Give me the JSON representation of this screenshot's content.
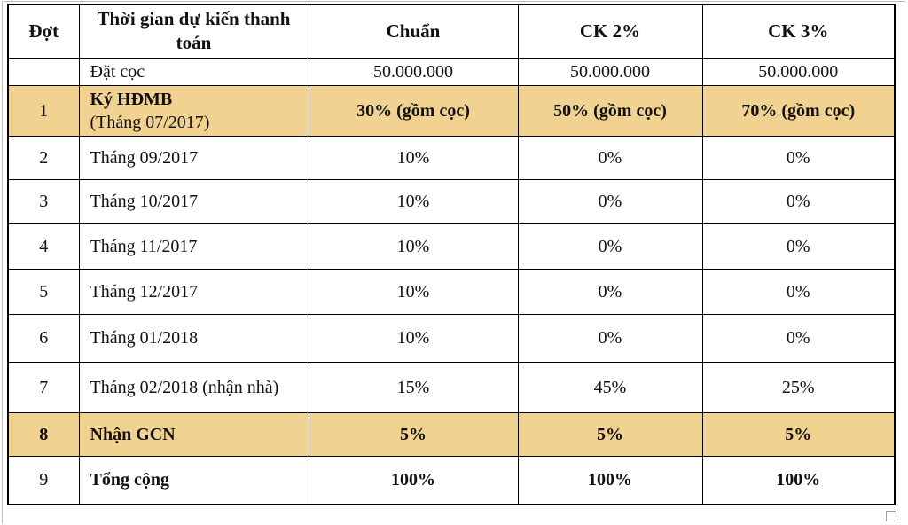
{
  "table": {
    "highlight_color": "#F1D291",
    "border_color": "#000000",
    "columns": [
      {
        "key": "dot",
        "label": "Đợt"
      },
      {
        "key": "time",
        "label": "Thời gian dự kiến thanh toán"
      },
      {
        "key": "chuan",
        "label": "Chuẩn"
      },
      {
        "key": "ck2",
        "label": "CK 2%"
      },
      {
        "key": "ck3",
        "label": "CK 3%"
      }
    ],
    "rows": [
      {
        "dot": "",
        "time": "Đặt cọc",
        "time_line2": "",
        "chuan": "50.000.000",
        "ck2": "50.000.000",
        "ck3": "50.000.000",
        "highlight": false,
        "bold_dot": false,
        "bold_time": false,
        "bold_values": false
      },
      {
        "dot": "1",
        "time": "Ký HĐMB",
        "time_line2": "(Tháng 07/2017)",
        "chuan": "30% (gồm cọc)",
        "ck2": "50% (gồm cọc)",
        "ck3": "70% (gồm cọc)",
        "highlight": true,
        "bold_dot": false,
        "bold_time": true,
        "bold_values": true
      },
      {
        "dot": "2",
        "time": "Tháng 09/2017",
        "time_line2": "",
        "chuan": "10%",
        "ck2": "0%",
        "ck3": "0%",
        "highlight": false,
        "bold_dot": false,
        "bold_time": false,
        "bold_values": false
      },
      {
        "dot": "3",
        "time": "Tháng 10/2017",
        "time_line2": "",
        "chuan": "10%",
        "ck2": "0%",
        "ck3": "0%",
        "highlight": false,
        "bold_dot": false,
        "bold_time": false,
        "bold_values": false
      },
      {
        "dot": "4",
        "time": "Tháng 11/2017",
        "time_line2": "",
        "chuan": "10%",
        "ck2": "0%",
        "ck3": "0%",
        "highlight": false,
        "bold_dot": false,
        "bold_time": false,
        "bold_values": false
      },
      {
        "dot": "5",
        "time": "Tháng 12/2017",
        "time_line2": "",
        "chuan": "10%",
        "ck2": "0%",
        "ck3": "0%",
        "highlight": false,
        "bold_dot": false,
        "bold_time": false,
        "bold_values": false
      },
      {
        "dot": "6",
        "time": "Tháng 01/2018",
        "time_line2": "",
        "chuan": "10%",
        "ck2": "0%",
        "ck3": "0%",
        "highlight": false,
        "bold_dot": false,
        "bold_time": false,
        "bold_values": false
      },
      {
        "dot": "7",
        "time": "Tháng 02/2018 (nhận nhà)",
        "time_line2": "",
        "chuan": "15%",
        "ck2": "45%",
        "ck3": "25%",
        "highlight": false,
        "bold_dot": false,
        "bold_time": false,
        "bold_values": false
      },
      {
        "dot": "8",
        "time": "Nhận GCN",
        "time_line2": "",
        "chuan": "5%",
        "ck2": "5%",
        "ck3": "5%",
        "highlight": true,
        "bold_dot": true,
        "bold_time": true,
        "bold_values": true
      },
      {
        "dot": "9",
        "time": "Tổng cộng",
        "time_line2": "",
        "chuan": "100%",
        "ck2": "100%",
        "ck3": "100%",
        "highlight": false,
        "bold_dot": false,
        "bold_time": true,
        "bold_values": true
      }
    ]
  }
}
